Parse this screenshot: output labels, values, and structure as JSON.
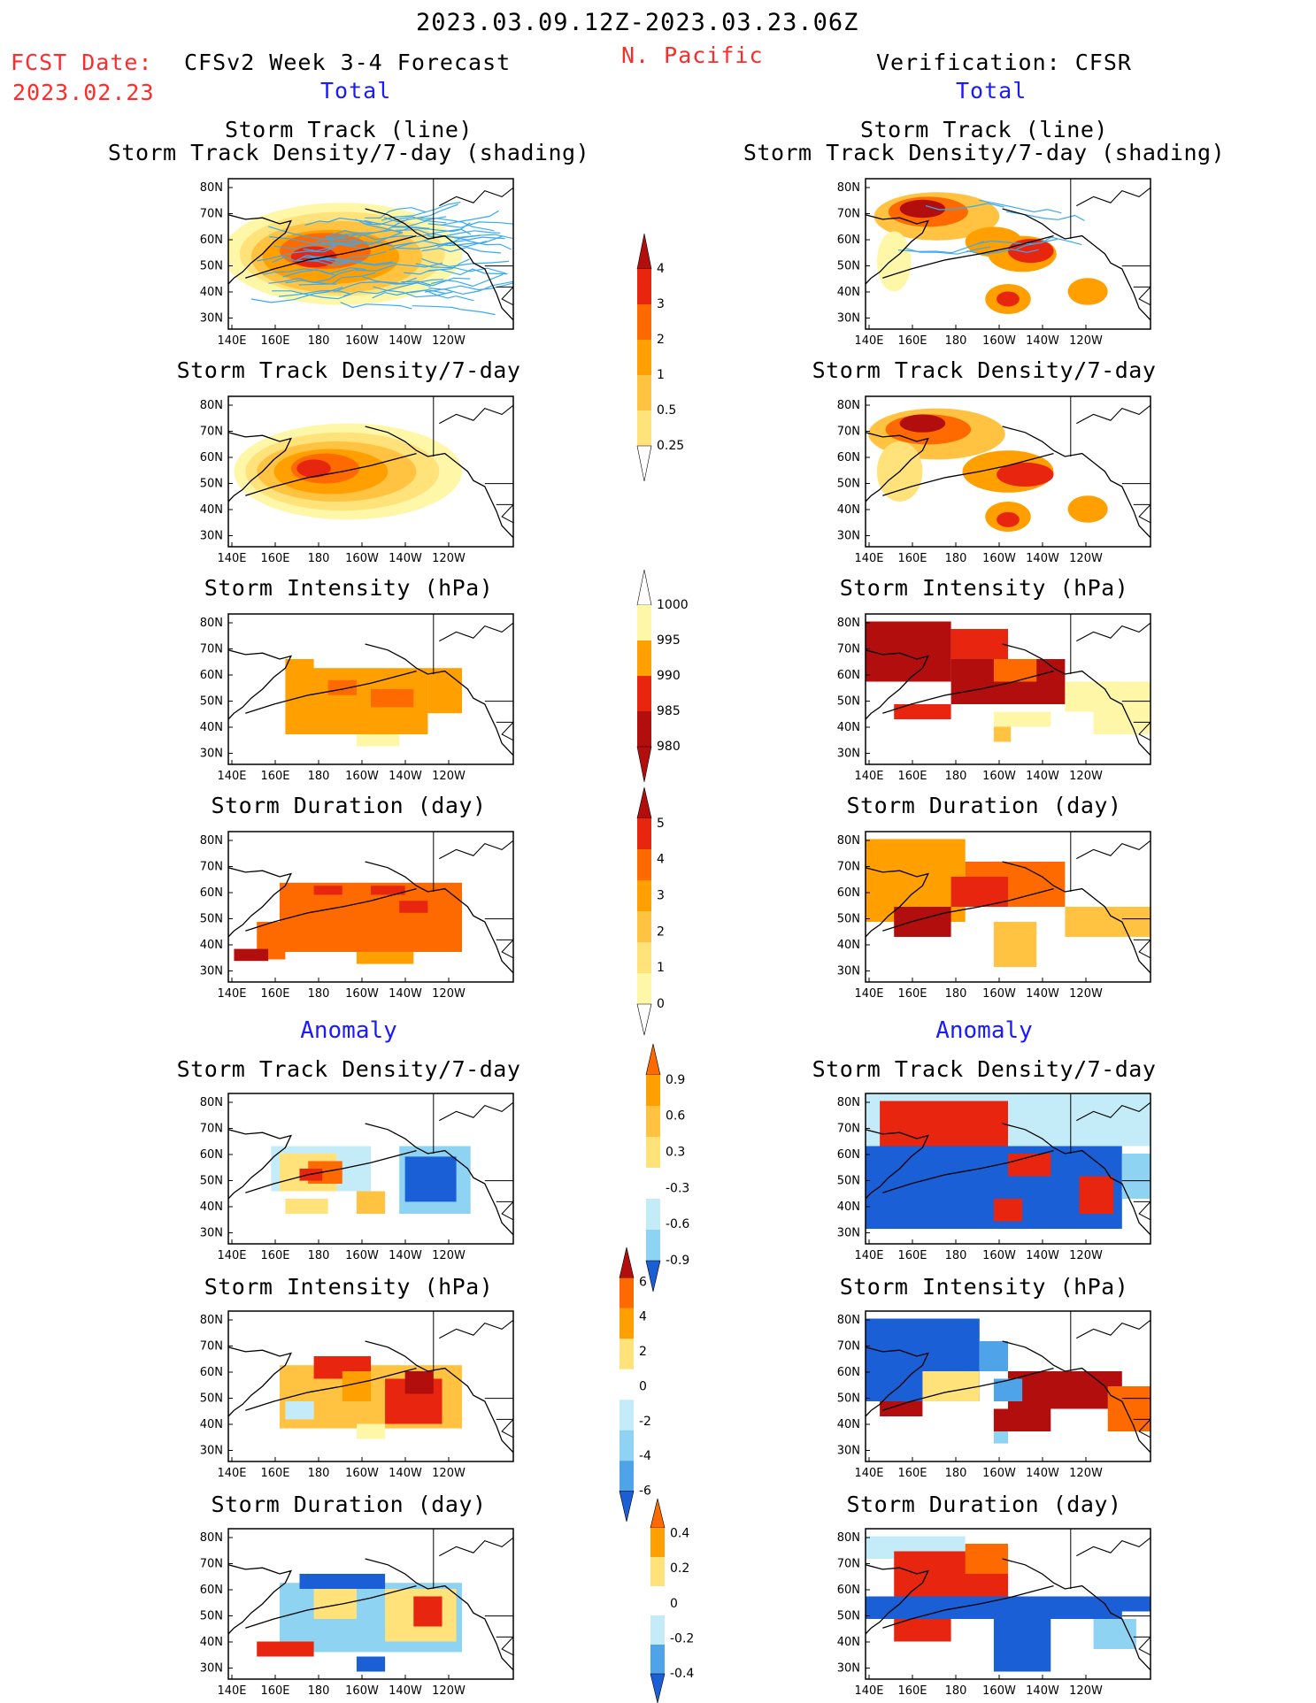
{
  "header": {
    "date_range": "2023.03.09.12Z-2023.03.23.06Z",
    "fcst_label": "FCST Date:",
    "fcst_date": "2023.02.23",
    "model": "CFSv2 Week 3-4 Forecast",
    "region": "N. Pacific",
    "verification": "Verification: CFSR",
    "total_left": "Total",
    "total_right": "Total",
    "anomaly_left": "Anomaly",
    "anomaly_right": "Anomaly"
  },
  "titles": {
    "track_line": "Storm Track (line)",
    "track_shading": "Storm Track Density/7-day (shading)",
    "density": "Storm Track Density/7-day",
    "intensity": "Storm Intensity (hPa)",
    "duration": "Storm Duration (day)"
  },
  "axes": {
    "lat_labels": [
      "80N",
      "70N",
      "60N",
      "50N",
      "40N",
      "30N"
    ],
    "lon_labels": [
      "140E",
      "160E",
      "180",
      "160W",
      "140W",
      "120W"
    ]
  },
  "colorbars": {
    "density_total": [
      "4",
      "3",
      "2",
      "1",
      "0.5",
      "0.25"
    ],
    "intensity_total": [
      "1000",
      "995",
      "990",
      "985",
      "980"
    ],
    "duration_total": [
      "5",
      "4",
      "3",
      "2",
      "1",
      "0"
    ],
    "density_anom": [
      "0.9",
      "0.6",
      "0.3",
      "-0.3",
      "-0.6",
      "-0.9"
    ],
    "intensity_anom": [
      "6",
      "4",
      "2",
      "0",
      "-2",
      "-4",
      "-6"
    ],
    "duration_anom": [
      "0.4",
      "0.2",
      "0",
      "-0.2",
      "-0.4"
    ]
  },
  "colors": {
    "warm": [
      "#fff7a8",
      "#ffe37a",
      "#ffc341",
      "#ff9f00",
      "#ff6a00",
      "#e8260f",
      "#b30e0e"
    ],
    "cool": [
      "#c4ecf8",
      "#8fd3f2",
      "#4fa3e8",
      "#1a5fd6"
    ],
    "track_line": "#3aaaf0"
  }
}
